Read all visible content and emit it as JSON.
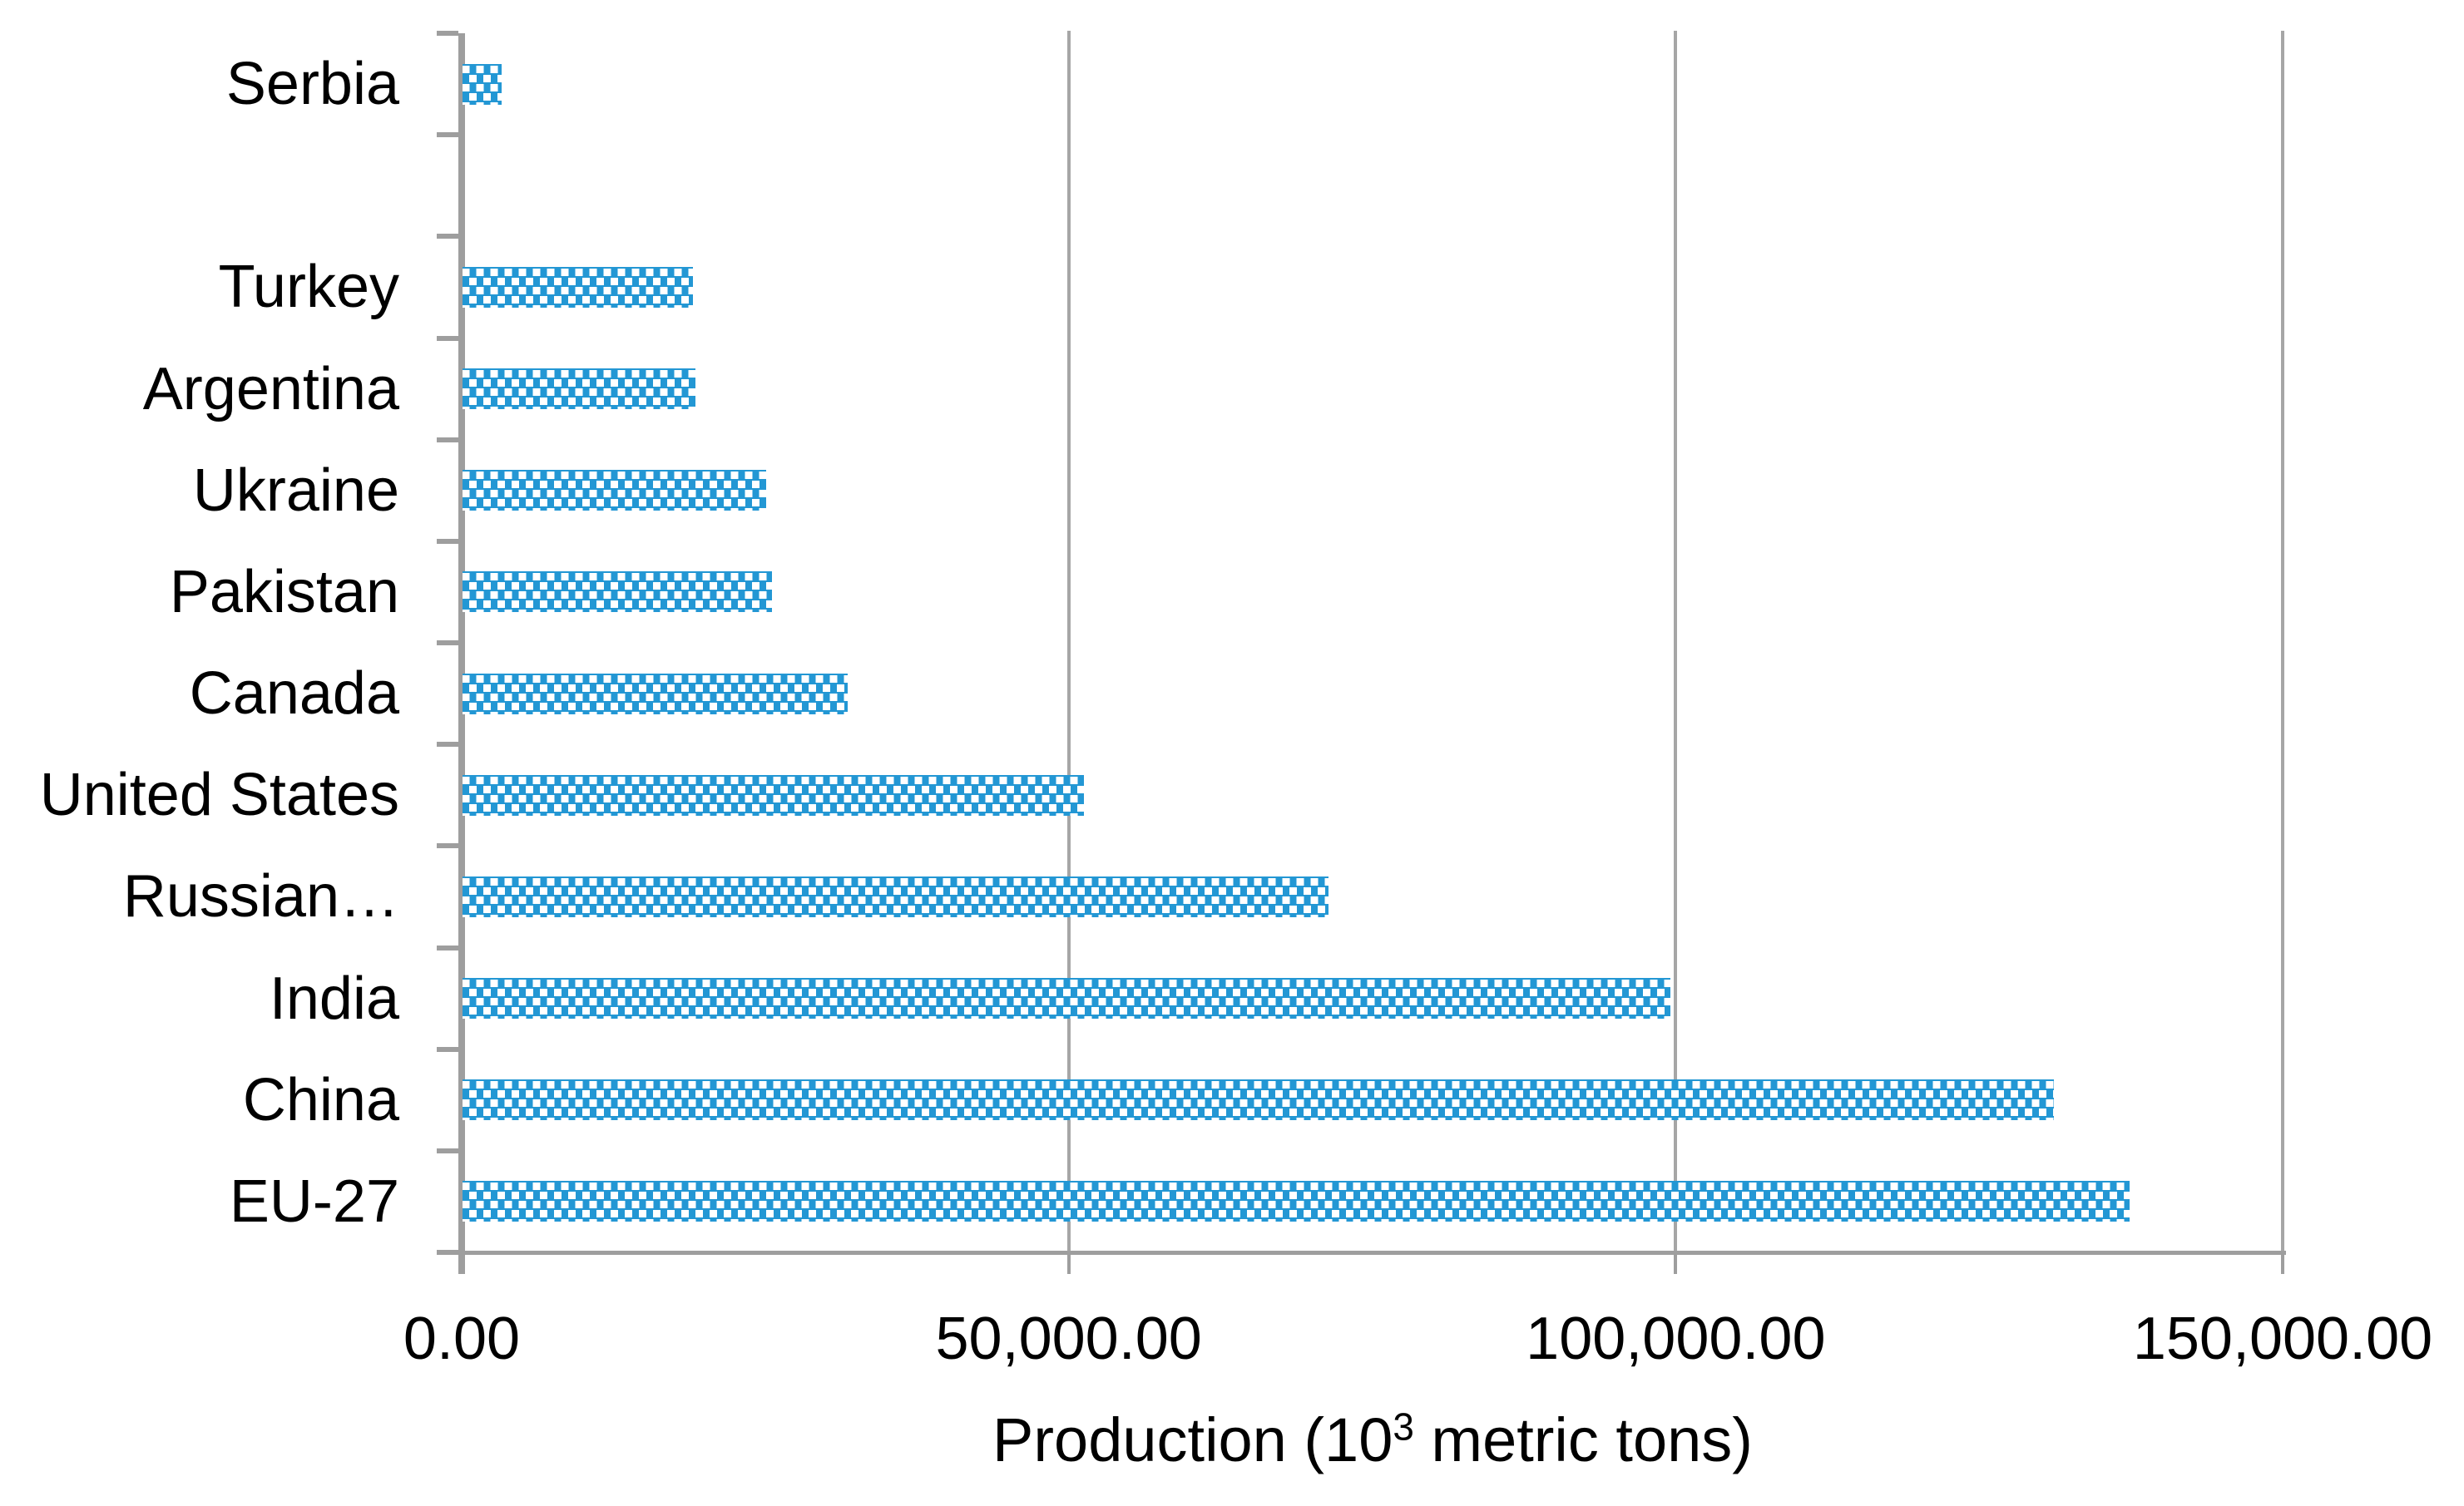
{
  "chart_data": {
    "type": "bar",
    "orientation": "horizontal",
    "title": "",
    "xlabel_text": "Production (10³ metric tons)",
    "xlabel_parts": {
      "pre": "Production (10",
      "sup": "3",
      "post": " metric tons)"
    },
    "category_order": "top-to-bottom",
    "categories": [
      "Serbia",
      "",
      "Turkey",
      "Argentina",
      "Ukraine",
      "Pakistan",
      "Canada",
      "United States",
      "Russian…",
      "India",
      "China",
      "EU-27"
    ],
    "values": [
      3200,
      null,
      19000,
      19200,
      25000,
      25500,
      31700,
      51200,
      71300,
      99500,
      131100,
      137300
    ],
    "x_axis": {
      "min": 0,
      "max": 150000,
      "tick_interval": 50000,
      "tick_values": [
        0,
        50000,
        100000,
        150000
      ],
      "tick_labels": [
        "0.00",
        "50,000.00",
        "100,000.00",
        "150,000.00"
      ]
    },
    "grid": "vertical gridlines at each x tick",
    "legend": "none",
    "bar_style": "blue fill with staggered white square dot pattern",
    "colors": {
      "bar_fill": "#2397d4",
      "bar_dots": "#ffffff",
      "axis": "#9e9e9e",
      "gridline": "#a6a6a6",
      "text": "#000000",
      "background": "#ffffff"
    }
  }
}
